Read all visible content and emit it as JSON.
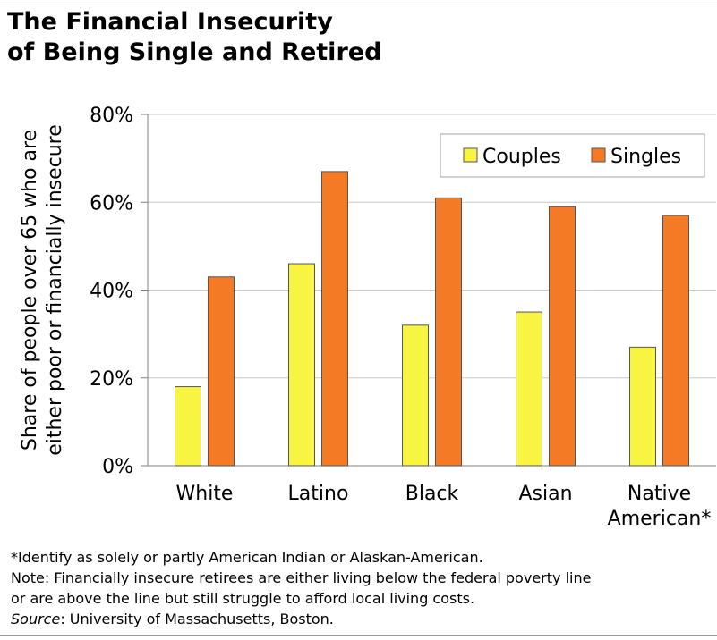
{
  "title_lines": [
    "The Financial Insecurity",
    "of Being Single and Retired"
  ],
  "chart_data": {
    "type": "bar",
    "categories": [
      "White",
      "Latino",
      "Black",
      "Asian",
      "Native American*"
    ],
    "category_lines": [
      [
        "White"
      ],
      [
        "Latino"
      ],
      [
        "Black"
      ],
      [
        "Asian"
      ],
      [
        "Native",
        "American*"
      ]
    ],
    "series": [
      {
        "name": "Couples",
        "values": [
          18,
          46,
          32,
          35,
          27
        ],
        "color": "#f7f442"
      },
      {
        "name": "Singles",
        "values": [
          43,
          67,
          61,
          59,
          57
        ],
        "color": "#f47a26"
      }
    ],
    "ylabel_lines": [
      "Share of people over 65 who are",
      "either poor or financially insecure"
    ],
    "ylim": [
      0,
      80
    ],
    "yticks": [
      0,
      20,
      40,
      60,
      80
    ],
    "ytick_labels": [
      "0%",
      "20%",
      "40%",
      "60%",
      "80%"
    ],
    "grid": true,
    "legend_position": "top-right"
  },
  "notes": {
    "footnote": "*Identify as solely or partly American Indian or Alaskan-American.",
    "note_line1": "Note: Financially insecure retirees are either living below the federal poverty line",
    "note_line2": "or are above the line but still struggle to afford local living costs.",
    "source_label": "Source",
    "source_text": ": University of Massachusetts, Boston."
  }
}
